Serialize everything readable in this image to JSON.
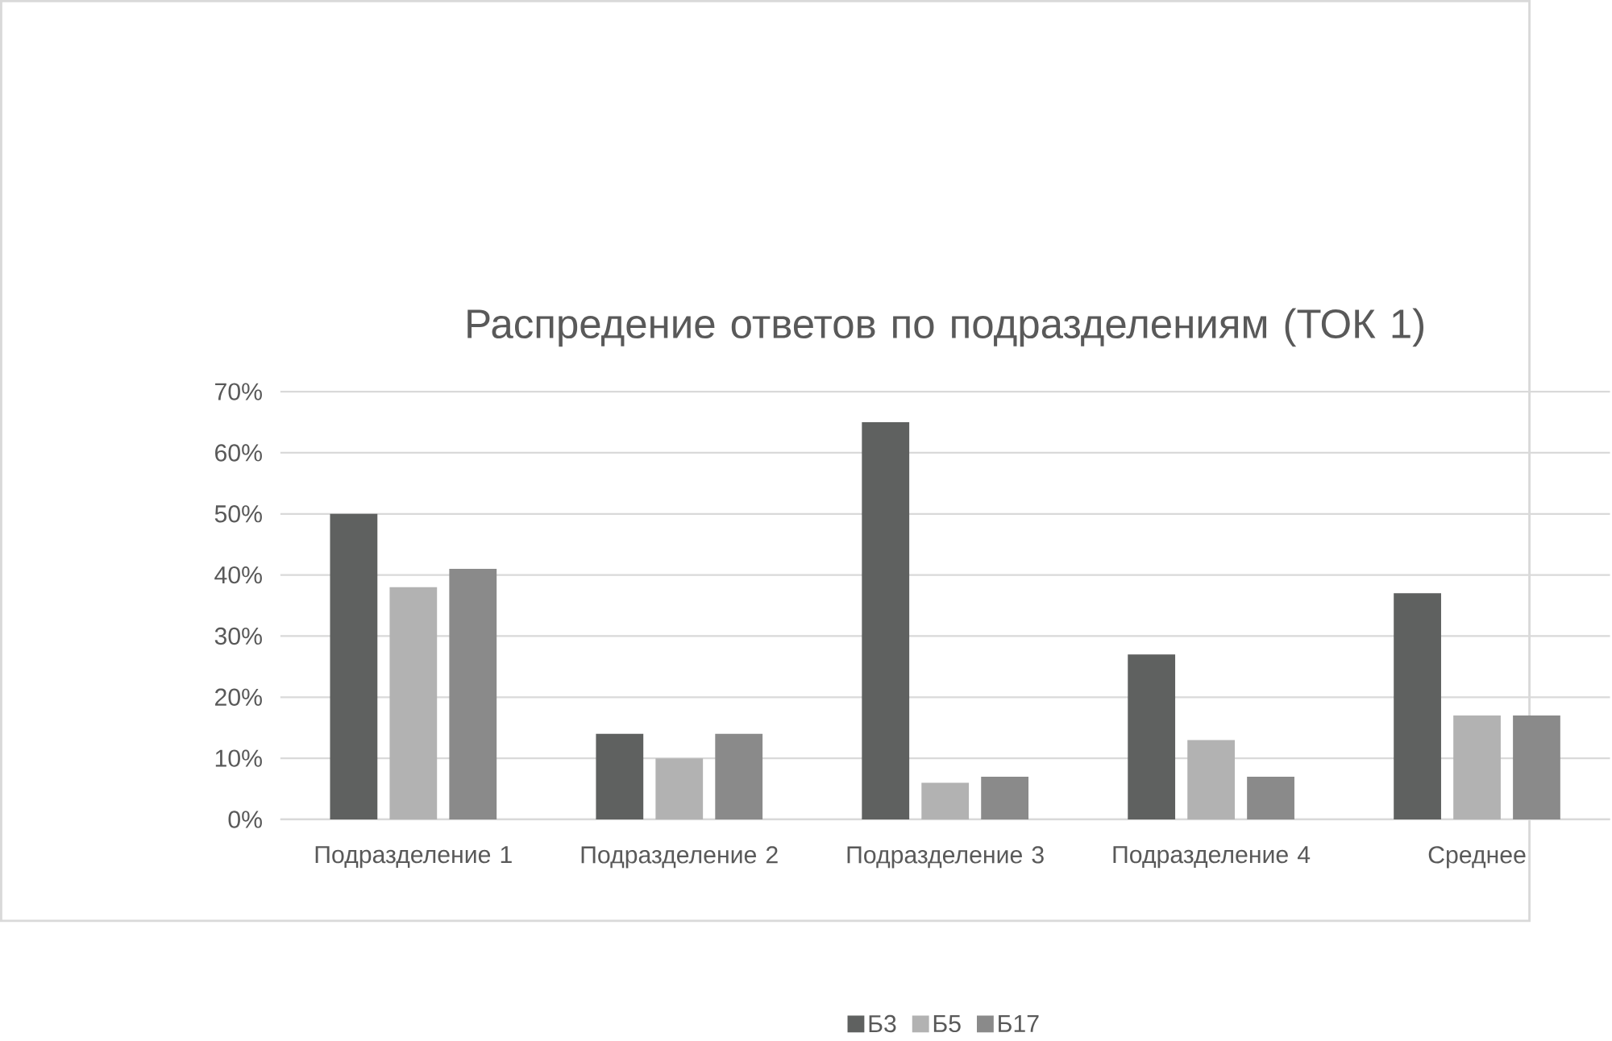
{
  "chart_data": {
    "type": "bar",
    "title": "Распредение ответов по подразделениям (ТОК 1)",
    "categories": [
      "Подразделение 1",
      "Подразделение 2",
      "Подразделение 3",
      "Подразделение 4",
      "Среднее"
    ],
    "series": [
      {
        "name": "Б3",
        "color": "#5f6160",
        "values": [
          50,
          14,
          65,
          27,
          37
        ]
      },
      {
        "name": "Б5",
        "color": "#b2b2b2",
        "values": [
          38,
          10,
          6,
          13,
          17
        ]
      },
      {
        "name": "Б17",
        "color": "#8a8a8a",
        "values": [
          41,
          14,
          7,
          7,
          17
        ]
      }
    ],
    "ylim": [
      0,
      70
    ],
    "yticks": [
      {
        "value": 0,
        "label": "0%"
      },
      {
        "value": 10,
        "label": "10%"
      },
      {
        "value": 20,
        "label": "20%"
      },
      {
        "value": 30,
        "label": "30%"
      },
      {
        "value": 40,
        "label": "40%"
      },
      {
        "value": 50,
        "label": "50%"
      },
      {
        "value": 60,
        "label": "60%"
      },
      {
        "value": 70,
        "label": "70%"
      }
    ],
    "grid": "y",
    "legend": "bottom"
  }
}
